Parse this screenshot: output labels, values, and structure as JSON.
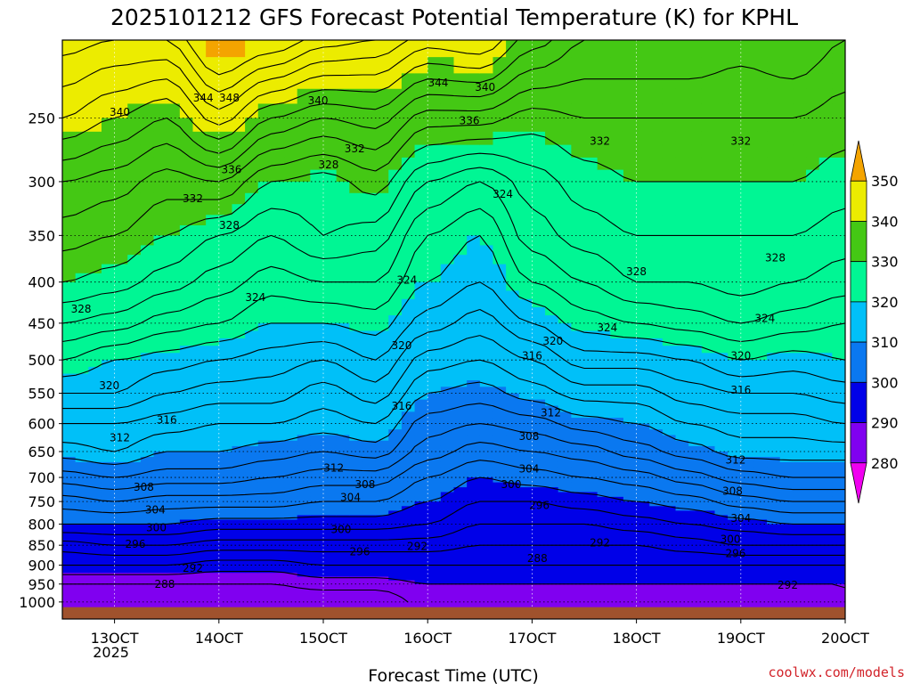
{
  "chart_data": {
    "type": "heatmap",
    "title": "2025101212 GFS Forecast Potential Temperature (K) for KPHL",
    "xlabel": "Forecast Time (UTC)",
    "ylabel": "",
    "credit": "coolwx.com/models",
    "y_scale": "log-pressure",
    "y_ticks": [
      250,
      300,
      350,
      400,
      450,
      500,
      550,
      600,
      650,
      700,
      750,
      800,
      850,
      900,
      950,
      1000
    ],
    "x_ticks": [
      {
        "day": 13,
        "label": "13OCT",
        "sublabel": "2025"
      },
      {
        "day": 14,
        "label": "14OCT",
        "sublabel": ""
      },
      {
        "day": 15,
        "label": "15OCT",
        "sublabel": ""
      },
      {
        "day": 16,
        "label": "16OCT",
        "sublabel": ""
      },
      {
        "day": 17,
        "label": "17OCT",
        "sublabel": ""
      },
      {
        "day": 18,
        "label": "18OCT",
        "sublabel": ""
      },
      {
        "day": 19,
        "label": "19OCT",
        "sublabel": ""
      },
      {
        "day": 20,
        "label": "20OCT",
        "sublabel": ""
      }
    ],
    "xlim_days": [
      12.5,
      20.0
    ],
    "ylim_hpa": [
      200,
      1050
    ],
    "grid": true,
    "colorbar": {
      "labels": [
        "350",
        "340",
        "330",
        "320",
        "310",
        "300",
        "290",
        "280"
      ],
      "bins": [
        {
          "min": 350,
          "color": "#f4a400"
        },
        {
          "min": 340,
          "color": "#ecec00"
        },
        {
          "min": 330,
          "color": "#44c814"
        },
        {
          "min": 320,
          "color": "#00f694"
        },
        {
          "min": 310,
          "color": "#00c0f8"
        },
        {
          "min": 300,
          "color": "#0a78f0"
        },
        {
          "min": 290,
          "color": "#0000e8"
        },
        {
          "min": 280,
          "color": "#8000f0"
        },
        {
          "min": 0,
          "color": "#f000f0"
        }
      ]
    },
    "ground_color": "#a0522d",
    "contour_interval_K": 2,
    "contour_levels": [
      286,
      288,
      290,
      292,
      294,
      296,
      298,
      300,
      302,
      304,
      306,
      308,
      310,
      312,
      314,
      316,
      318,
      320,
      322,
      324,
      326,
      328,
      330,
      332,
      334,
      336,
      338,
      340,
      342,
      344,
      346,
      348
    ],
    "columns": [
      {
        "day": 12.5,
        "theta": {
          "1000": 286,
          "950": 288,
          "900": 292,
          "850": 295,
          "800": 300,
          "750": 303,
          "700": 307,
          "650": 311,
          "600": 314,
          "550": 318,
          "500": 322,
          "450": 326,
          "400": 330,
          "350": 333,
          "300": 336,
          "250": 342,
          "200": 347
        }
      },
      {
        "day": 13.0,
        "theta": {
          "1000": 286,
          "950": 288,
          "900": 292,
          "850": 296,
          "800": 300,
          "750": 304,
          "700": 308,
          "650": 312,
          "600": 314,
          "550": 318,
          "500": 320,
          "450": 325,
          "400": 329,
          "350": 332,
          "300": 335,
          "250": 340,
          "200": 346
        }
      },
      {
        "day": 13.5,
        "theta": {
          "1000": 286,
          "950": 288,
          "900": 292,
          "850": 296,
          "800": 300,
          "750": 303,
          "700": 307,
          "650": 310,
          "600": 313,
          "550": 316,
          "500": 319,
          "450": 323,
          "400": 327,
          "350": 330,
          "300": 333,
          "250": 338,
          "200": 346
        }
      },
      {
        "day": 14.0,
        "theta": {
          "1000": 286,
          "950": 288,
          "900": 291,
          "850": 295,
          "800": 299,
          "750": 303,
          "700": 307,
          "650": 310,
          "600": 312,
          "550": 315,
          "500": 318,
          "450": 322,
          "400": 325,
          "350": 328,
          "300": 334,
          "250": 343,
          "200": 352
        }
      },
      {
        "day": 14.5,
        "theta": {
          "1000": 286,
          "950": 288,
          "900": 291,
          "850": 295,
          "800": 299,
          "750": 303,
          "700": 306,
          "650": 309,
          "600": 312,
          "550": 315,
          "500": 317,
          "450": 320,
          "400": 323,
          "350": 326,
          "300": 330,
          "250": 338,
          "200": 350
        }
      },
      {
        "day": 15.0,
        "theta": {
          "1000": 286,
          "950": 289,
          "900": 292,
          "850": 295,
          "800": 299,
          "750": 302,
          "700": 305,
          "650": 308,
          "600": 311,
          "550": 313,
          "500": 316,
          "450": 320,
          "400": 324,
          "350": 328,
          "300": 329,
          "250": 336,
          "200": 347
        }
      },
      {
        "day": 15.5,
        "theta": {
          "1000": 286,
          "950": 289,
          "900": 292,
          "850": 295,
          "800": 299,
          "750": 302,
          "700": 305,
          "650": 309,
          "600": 312,
          "550": 315,
          "500": 318,
          "450": 321,
          "400": 324,
          "350": 327,
          "300": 331,
          "250": 337,
          "200": 346
        }
      },
      {
        "day": 16.0,
        "theta": {
          "1000": 289,
          "950": 290,
          "900": 292,
          "850": 295,
          "800": 298,
          "750": 300,
          "700": 302,
          "650": 305,
          "600": 307,
          "550": 310,
          "500": 313,
          "450": 317,
          "400": 320,
          "350": 322,
          "300": 326,
          "250": 333,
          "200": 343
        }
      },
      {
        "day": 16.5,
        "theta": {
          "1000": 289,
          "950": 290,
          "900": 292,
          "850": 294,
          "800": 296,
          "750": 298,
          "700": 300,
          "650": 303,
          "600": 306,
          "550": 309,
          "500": 312,
          "450": 315,
          "400": 318,
          "350": 320,
          "300": 324,
          "250": 333,
          "200": 344
        }
      },
      {
        "day": 17.0,
        "theta": {
          "1000": 289,
          "950": 290,
          "900": 292,
          "850": 294,
          "800": 296,
          "750": 298,
          "700": 301,
          "650": 304,
          "600": 307,
          "550": 311,
          "500": 314,
          "450": 318,
          "400": 322,
          "350": 325,
          "300": 327,
          "250": 331,
          "200": 339
        }
      },
      {
        "day": 17.5,
        "theta": {
          "1000": 289,
          "950": 290,
          "900": 292,
          "850": 294,
          "800": 296,
          "750": 299,
          "700": 302,
          "650": 305,
          "600": 309,
          "550": 313,
          "500": 317,
          "450": 321,
          "400": 324,
          "350": 327,
          "300": 329,
          "250": 332,
          "200": 336
        }
      },
      {
        "day": 18.0,
        "theta": {
          "1000": 289,
          "950": 290,
          "900": 292,
          "850": 294,
          "800": 297,
          "750": 300,
          "700": 303,
          "650": 307,
          "600": 310,
          "550": 313,
          "500": 317,
          "450": 322,
          "400": 326,
          "350": 328,
          "300": 330,
          "250": 332,
          "200": 336
        }
      },
      {
        "day": 18.5,
        "theta": {
          "1000": 288,
          "950": 290,
          "900": 292,
          "850": 295,
          "800": 298,
          "750": 301,
          "700": 305,
          "650": 309,
          "600": 312,
          "550": 315,
          "500": 318,
          "450": 323,
          "400": 326,
          "350": 328,
          "300": 330,
          "250": 332,
          "200": 336
        }
      },
      {
        "day": 19.0,
        "theta": {
          "1000": 289,
          "950": 290,
          "900": 292,
          "850": 296,
          "800": 299,
          "750": 303,
          "700": 307,
          "650": 311,
          "600": 313,
          "550": 316,
          "500": 320,
          "450": 324,
          "400": 327,
          "350": 328,
          "300": 330,
          "250": 332,
          "200": 335
        }
      },
      {
        "day": 19.5,
        "theta": {
          "1000": 289,
          "950": 290,
          "900": 292,
          "850": 296,
          "800": 300,
          "750": 304,
          "700": 308,
          "650": 311,
          "600": 313,
          "550": 316,
          "500": 319,
          "450": 323,
          "400": 326,
          "350": 328,
          "300": 330,
          "250": 332,
          "200": 336
        }
      },
      {
        "day": 20.0,
        "theta": {
          "1000": 290,
          "950": 290,
          "900": 292,
          "850": 296,
          "800": 300,
          "750": 304,
          "700": 308,
          "650": 311,
          "600": 314,
          "550": 317,
          "500": 320,
          "450": 322,
          "400": 325,
          "350": 327,
          "300": 329,
          "250": 331,
          "200": 334
        }
      }
    ],
    "contour_labels": [
      {
        "text": "344",
        "day": 13.85,
        "hpa": 236
      },
      {
        "text": "348",
        "day": 14.1,
        "hpa": 236
      },
      {
        "text": "340",
        "day": 13.05,
        "hpa": 246
      },
      {
        "text": "340",
        "day": 14.95,
        "hpa": 238
      },
      {
        "text": "344",
        "day": 16.1,
        "hpa": 226
      },
      {
        "text": "340",
        "day": 16.55,
        "hpa": 229
      },
      {
        "text": "336",
        "day": 16.4,
        "hpa": 252
      },
      {
        "text": "332",
        "day": 15.3,
        "hpa": 273
      },
      {
        "text": "332",
        "day": 17.65,
        "hpa": 267
      },
      {
        "text": "332",
        "day": 19.0,
        "hpa": 267
      },
      {
        "text": "336",
        "day": 14.12,
        "hpa": 290
      },
      {
        "text": "328",
        "day": 15.05,
        "hpa": 286
      },
      {
        "text": "332",
        "day": 13.75,
        "hpa": 315
      },
      {
        "text": "324",
        "day": 16.72,
        "hpa": 311
      },
      {
        "text": "328",
        "day": 14.1,
        "hpa": 340
      },
      {
        "text": "328",
        "day": 19.33,
        "hpa": 373
      },
      {
        "text": "328",
        "day": 18.0,
        "hpa": 388
      },
      {
        "text": "324",
        "day": 15.8,
        "hpa": 398
      },
      {
        "text": "324",
        "day": 14.35,
        "hpa": 418
      },
      {
        "text": "328",
        "day": 12.68,
        "hpa": 432
      },
      {
        "text": "324",
        "day": 19.23,
        "hpa": 444
      },
      {
        "text": "324",
        "day": 17.72,
        "hpa": 456
      },
      {
        "text": "320",
        "day": 15.75,
        "hpa": 480
      },
      {
        "text": "320",
        "day": 17.2,
        "hpa": 474
      },
      {
        "text": "316",
        "day": 17.0,
        "hpa": 494
      },
      {
        "text": "320",
        "day": 19.0,
        "hpa": 494
      },
      {
        "text": "320",
        "day": 12.95,
        "hpa": 538
      },
      {
        "text": "316",
        "day": 19.0,
        "hpa": 545
      },
      {
        "text": "316",
        "day": 15.75,
        "hpa": 571
      },
      {
        "text": "312",
        "day": 17.18,
        "hpa": 582
      },
      {
        "text": "316",
        "day": 13.5,
        "hpa": 594
      },
      {
        "text": "312",
        "day": 13.05,
        "hpa": 625
      },
      {
        "text": "308",
        "day": 16.97,
        "hpa": 622
      },
      {
        "text": "312",
        "day": 18.95,
        "hpa": 666
      },
      {
        "text": "312",
        "day": 15.1,
        "hpa": 681
      },
      {
        "text": "304",
        "day": 16.97,
        "hpa": 683
      },
      {
        "text": "308",
        "day": 15.4,
        "hpa": 714
      },
      {
        "text": "300",
        "day": 16.8,
        "hpa": 714
      },
      {
        "text": "308",
        "day": 13.28,
        "hpa": 720
      },
      {
        "text": "308",
        "day": 18.92,
        "hpa": 728
      },
      {
        "text": "304",
        "day": 15.26,
        "hpa": 741
      },
      {
        "text": "296",
        "day": 17.07,
        "hpa": 758
      },
      {
        "text": "304",
        "day": 13.39,
        "hpa": 768
      },
      {
        "text": "304",
        "day": 19.0,
        "hpa": 787
      },
      {
        "text": "300",
        "day": 13.4,
        "hpa": 808
      },
      {
        "text": "300",
        "day": 15.17,
        "hpa": 813
      },
      {
        "text": "292",
        "day": 17.65,
        "hpa": 844
      },
      {
        "text": "300",
        "day": 18.9,
        "hpa": 836
      },
      {
        "text": "296",
        "day": 13.2,
        "hpa": 848
      },
      {
        "text": "296",
        "day": 15.35,
        "hpa": 866
      },
      {
        "text": "292",
        "day": 15.9,
        "hpa": 853
      },
      {
        "text": "296",
        "day": 18.95,
        "hpa": 871
      },
      {
        "text": "288",
        "day": 17.05,
        "hpa": 883
      },
      {
        "text": "292",
        "day": 13.75,
        "hpa": 908
      },
      {
        "text": "288",
        "day": 13.48,
        "hpa": 950
      },
      {
        "text": "292",
        "day": 19.45,
        "hpa": 953
      }
    ]
  }
}
